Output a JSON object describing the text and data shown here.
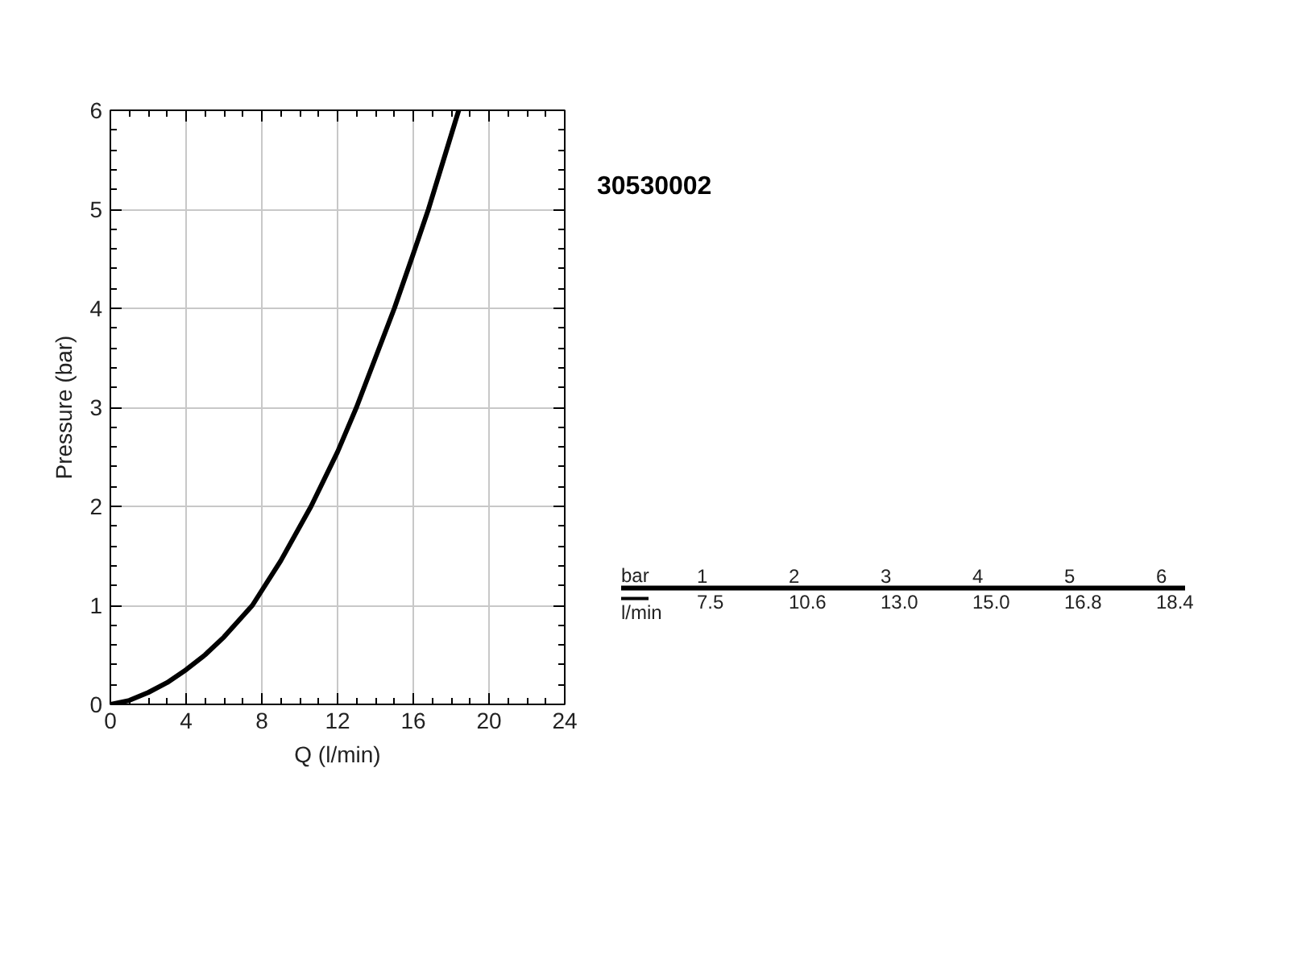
{
  "chart_data": {
    "type": "line",
    "title": "30530002",
    "xlabel": "Q (l/min)",
    "ylabel": "Pressure (bar)",
    "x": [
      0,
      1,
      2,
      3,
      4,
      5,
      6,
      7.5,
      9,
      10.6,
      12,
      13,
      14,
      15,
      16,
      16.8,
      17.6,
      18.4
    ],
    "series": [
      {
        "color": "#000000",
        "values": [
          0,
          0.04,
          0.12,
          0.22,
          0.35,
          0.5,
          0.68,
          1,
          1.45,
          2,
          2.55,
          3,
          3.5,
          4,
          4.55,
          5,
          5.5,
          6
        ]
      }
    ],
    "xlim": [
      0,
      24
    ],
    "ylim": [
      0,
      6
    ],
    "xticks": [
      0,
      4,
      8,
      12,
      16,
      20,
      24
    ],
    "yticks": [
      0,
      1,
      2,
      3,
      4,
      5,
      6
    ],
    "grid": true,
    "line_style": "solid",
    "marker": "none",
    "annotations": [
      "bar",
      "l/min",
      "1",
      "7.5",
      "2",
      "10.6",
      "3",
      "13.0",
      "4",
      "15.0",
      "5",
      "16.8",
      "6",
      "18.4"
    ]
  }
}
